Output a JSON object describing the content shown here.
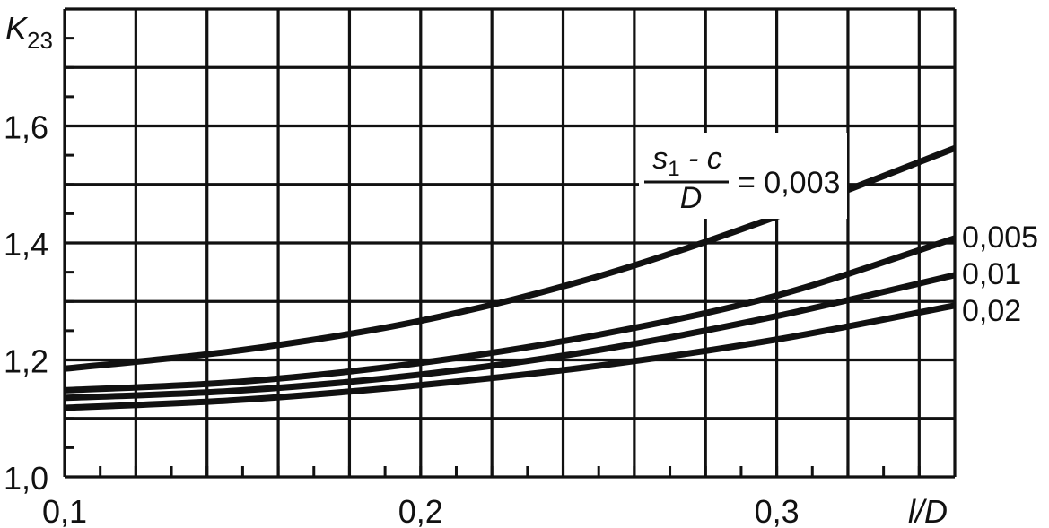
{
  "chart_data": {
    "type": "line",
    "ylabel": {
      "base": "K",
      "sub": "23"
    },
    "xlabel": "l/D",
    "xlim": [
      0.1,
      0.35
    ],
    "ylim": [
      1.0,
      1.8
    ],
    "x_ticks": [
      {
        "value": 0.1,
        "label": "0,1"
      },
      {
        "value": 0.2,
        "label": "0,2"
      },
      {
        "value": 0.3,
        "label": "0,3"
      }
    ],
    "y_ticks": [
      {
        "value": 1.0,
        "label": "1,0"
      },
      {
        "value": 1.2,
        "label": "1,2"
      },
      {
        "value": 1.4,
        "label": "1,4"
      },
      {
        "value": 1.6,
        "label": "1,6"
      }
    ],
    "grid": true,
    "legend_header": {
      "numerator": "s",
      "numerator_sub": "1",
      "numerator_rest": " - c",
      "denominator": "D",
      "equals": "="
    },
    "series": [
      {
        "name": "0,003",
        "x": [
          0.1,
          0.15,
          0.2,
          0.25,
          0.3,
          0.35
        ],
        "y": [
          1.185,
          1.217,
          1.267,
          1.343,
          1.445,
          1.562
        ]
      },
      {
        "name": "0,005",
        "x": [
          0.1,
          0.15,
          0.2,
          0.25,
          0.3,
          0.35
        ],
        "y": [
          1.148,
          1.163,
          1.195,
          1.243,
          1.31,
          1.408
        ]
      },
      {
        "name": "0,01",
        "x": [
          0.1,
          0.15,
          0.2,
          0.25,
          0.3,
          0.35
        ],
        "y": [
          1.135,
          1.148,
          1.175,
          1.217,
          1.275,
          1.345
        ]
      },
      {
        "name": "0,02",
        "x": [
          0.1,
          0.15,
          0.2,
          0.25,
          0.3,
          0.35
        ],
        "y": [
          1.118,
          1.132,
          1.157,
          1.19,
          1.235,
          1.293
        ]
      }
    ]
  }
}
